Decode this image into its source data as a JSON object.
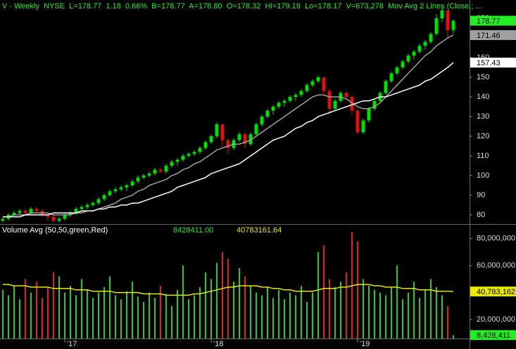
{
  "header": {
    "quote": "V - Weekly  NYSE  L=178.77  1.18  0.66%  B=178.77  A=178.80  O=178.32  Hi=179.19  Lo=178.17  V=673,278  Mov Avg 2 Lines (Close,; ...",
    "volume_study": "Volume Avg (50,50,green,Red)",
    "volume_value": "8428411.00",
    "volume_avg_value": "40783161.64"
  },
  "chart_data": [
    {
      "type": "candlestick",
      "up_color": "#00e000",
      "down_color": "#e01010",
      "ylim": [
        75.7,
        189.3
      ],
      "yticks": [
        80,
        90,
        100,
        110,
        120,
        130,
        140,
        150,
        160,
        170,
        180
      ],
      "candles": [
        [
          77,
          79,
          76,
          78
        ],
        [
          78,
          81,
          77,
          80
        ],
        [
          80,
          82,
          79,
          81
        ],
        [
          81,
          83,
          80,
          82
        ],
        [
          82,
          83,
          80,
          81
        ],
        [
          81,
          84,
          80,
          83
        ],
        [
          83,
          84,
          81,
          82
        ],
        [
          82,
          83,
          79,
          80
        ],
        [
          80,
          81,
          77,
          79
        ],
        [
          79,
          80,
          76,
          77
        ],
        [
          77,
          79,
          76,
          78
        ],
        [
          78,
          81,
          77,
          80
        ],
        [
          80,
          82,
          79,
          81
        ],
        [
          81,
          84,
          80,
          83
        ],
        [
          83,
          85,
          82,
          84
        ],
        [
          84,
          86,
          83,
          85
        ],
        [
          85,
          87,
          84,
          86
        ],
        [
          86,
          89,
          85,
          88
        ],
        [
          88,
          91,
          87,
          90
        ],
        [
          90,
          93,
          89,
          92
        ],
        [
          92,
          94,
          91,
          93
        ],
        [
          93,
          95,
          92,
          94
        ],
        [
          94,
          96,
          92,
          95
        ],
        [
          95,
          98,
          94,
          97
        ],
        [
          97,
          100,
          96,
          99
        ],
        [
          99,
          101,
          98,
          100
        ],
        [
          100,
          102,
          99,
          101
        ],
        [
          101,
          104,
          100,
          103
        ],
        [
          103,
          104,
          101,
          102
        ],
        [
          102,
          106,
          101,
          105
        ],
        [
          105,
          108,
          104,
          107
        ],
        [
          107,
          109,
          105,
          108
        ],
        [
          108,
          111,
          107,
          110
        ],
        [
          110,
          112,
          109,
          111
        ],
        [
          111,
          113,
          110,
          112
        ],
        [
          112,
          115,
          111,
          114
        ],
        [
          114,
          118,
          113,
          117
        ],
        [
          117,
          121,
          116,
          120
        ],
        [
          120,
          127,
          119,
          126
        ],
        [
          126,
          126,
          114,
          118
        ],
        [
          118,
          119,
          111,
          114
        ],
        [
          114,
          119,
          113,
          118
        ],
        [
          118,
          122,
          117,
          121
        ],
        [
          121,
          122,
          114,
          116
        ],
        [
          116,
          122,
          115,
          121
        ],
        [
          121,
          127,
          120,
          126
        ],
        [
          126,
          131,
          125,
          130
        ],
        [
          130,
          134,
          129,
          133
        ],
        [
          133,
          136,
          131,
          135
        ],
        [
          135,
          138,
          134,
          137
        ],
        [
          137,
          139,
          135,
          138
        ],
        [
          138,
          141,
          137,
          140
        ],
        [
          140,
          142,
          138,
          141
        ],
        [
          141,
          144,
          140,
          143
        ],
        [
          143,
          147,
          142,
          146
        ],
        [
          146,
          149,
          145,
          148
        ],
        [
          148,
          151,
          147,
          150
        ],
        [
          150,
          150,
          141,
          143
        ],
        [
          143,
          144,
          131,
          134
        ],
        [
          134,
          139,
          133,
          138
        ],
        [
          138,
          143,
          137,
          142
        ],
        [
          142,
          143,
          138,
          140
        ],
        [
          140,
          141,
          131,
          133
        ],
        [
          133,
          134,
          121,
          122
        ],
        [
          122,
          129,
          121,
          128
        ],
        [
          128,
          135,
          127,
          134
        ],
        [
          134,
          139,
          133,
          138
        ],
        [
          138,
          143,
          137,
          142
        ],
        [
          142,
          149,
          141,
          148
        ],
        [
          148,
          153,
          147,
          152
        ],
        [
          152,
          156,
          151,
          155
        ],
        [
          155,
          159,
          154,
          158
        ],
        [
          158,
          162,
          157,
          161
        ],
        [
          161,
          164,
          159,
          163
        ],
        [
          163,
          167,
          162,
          166
        ],
        [
          166,
          169,
          164,
          168
        ],
        [
          168,
          173,
          167,
          172
        ],
        [
          172,
          182,
          171,
          180
        ],
        [
          180,
          186,
          178,
          184
        ],
        [
          184,
          184,
          170,
          174
        ],
        [
          174,
          179.19,
          172,
          178.77
        ]
      ],
      "series": [
        {
          "color": "#a0a0a0",
          "values": [
            79,
            79,
            80,
            80,
            80,
            81,
            81,
            81,
            81,
            80,
            80,
            80,
            80,
            81,
            81,
            82,
            82,
            83,
            84,
            85,
            86,
            88,
            89,
            90,
            92,
            93,
            95,
            96,
            97,
            98,
            100,
            101,
            103,
            104,
            106,
            107,
            109,
            111,
            113,
            114,
            115,
            116,
            116,
            117,
            118,
            120,
            122,
            124,
            126,
            128,
            130,
            132,
            134,
            136,
            138,
            140,
            141,
            141,
            140,
            140,
            140,
            139,
            137,
            135,
            134,
            134,
            135,
            137,
            140,
            143,
            146,
            149,
            152,
            155,
            158,
            161,
            163,
            166,
            168,
            170,
            171.46
          ]
        },
        {
          "color": "#ffffff",
          "values": [
            79,
            79,
            79,
            79,
            80,
            80,
            80,
            80,
            80,
            81,
            81,
            81,
            81,
            81,
            82,
            82,
            82,
            83,
            83,
            84,
            84,
            85,
            85,
            86,
            86,
            87,
            88,
            89,
            90,
            91,
            92,
            94,
            95,
            96,
            97,
            98,
            99,
            101,
            102,
            103,
            104,
            105,
            106,
            108,
            110,
            112,
            114,
            116,
            118,
            119,
            120,
            122,
            124,
            125,
            127,
            128,
            130,
            131,
            132,
            133,
            134,
            135,
            136,
            137,
            138,
            138,
            139,
            140,
            140,
            141,
            142,
            143,
            144,
            145,
            146,
            148,
            149,
            151,
            153,
            155,
            157.43
          ]
        }
      ],
      "price_labels": [
        {
          "value": 178.77,
          "color": "#22ee22"
        },
        {
          "value": 171.46,
          "color": "#a0a0a0"
        },
        {
          "value": 157.43,
          "color": "#ffffff"
        }
      ]
    },
    {
      "type": "bar",
      "up_color": "#22cc22",
      "down_color": "#dd2222",
      "ylim": [
        5940000,
        89270000
      ],
      "yticks": [
        {
          "value": 20000000,
          "label": "20,000,000"
        },
        {
          "value": 60000000,
          "label": "60,000,000"
        },
        {
          "value": 80000000,
          "label": "80,000,000"
        }
      ],
      "xticks": [
        {
          "value": 11,
          "label": "'17"
        },
        {
          "value": 37,
          "label": "'18"
        },
        {
          "value": 63,
          "label": "'19"
        }
      ],
      "values": [
        42000000,
        38000000,
        45000000,
        35000000,
        50000000,
        40000000,
        48000000,
        36000000,
        44000000,
        55000000,
        52000000,
        40000000,
        45000000,
        38000000,
        50000000,
        42000000,
        36000000,
        40000000,
        44000000,
        52000000,
        38000000,
        35000000,
        41000000,
        48000000,
        37000000,
        33000000,
        40000000,
        36000000,
        45000000,
        39000000,
        30000000,
        42000000,
        60000000,
        35000000,
        38000000,
        44000000,
        55000000,
        50000000,
        62000000,
        70000000,
        65000000,
        48000000,
        58000000,
        52000000,
        45000000,
        40000000,
        38000000,
        44000000,
        36000000,
        42000000,
        35000000,
        40000000,
        38000000,
        45000000,
        33000000,
        40000000,
        70000000,
        75000000,
        50000000,
        44000000,
        48000000,
        55000000,
        85000000,
        78000000,
        50000000,
        45000000,
        42000000,
        40000000,
        38000000,
        44000000,
        60000000,
        35000000,
        40000000,
        48000000,
        36000000,
        42000000,
        50000000,
        44000000,
        38000000,
        30000000,
        8428411
      ],
      "series": [
        {
          "color": "#e8e800",
          "values": [
            46000000,
            46000000,
            45000000,
            45000000,
            45000000,
            44000000,
            44000000,
            44000000,
            44000000,
            43000000,
            43000000,
            43000000,
            43000000,
            42000000,
            42000000,
            42000000,
            41000000,
            41000000,
            41000000,
            41000000,
            40000000,
            40000000,
            40000000,
            40000000,
            40000000,
            39000000,
            39000000,
            39000000,
            39000000,
            38000000,
            38000000,
            38000000,
            38000000,
            38000000,
            39000000,
            39000000,
            40000000,
            41000000,
            42000000,
            43000000,
            44000000,
            44000000,
            45000000,
            45000000,
            45000000,
            45000000,
            44000000,
            44000000,
            43000000,
            43000000,
            42000000,
            42000000,
            41000000,
            41000000,
            41000000,
            41000000,
            42000000,
            43000000,
            43000000,
            43000000,
            44000000,
            44000000,
            45000000,
            46000000,
            46000000,
            46000000,
            45000000,
            45000000,
            44000000,
            44000000,
            44000000,
            43000000,
            43000000,
            43000000,
            42000000,
            42000000,
            42000000,
            41000000,
            41000000,
            41000000,
            40783161.64
          ]
        }
      ],
      "value_labels": [
        {
          "value": 40783161.64,
          "label": "40,783,162",
          "color": "#e8e800"
        },
        {
          "value": 8428411,
          "label": "8,428,411",
          "color": "#22ee22"
        }
      ]
    }
  ]
}
